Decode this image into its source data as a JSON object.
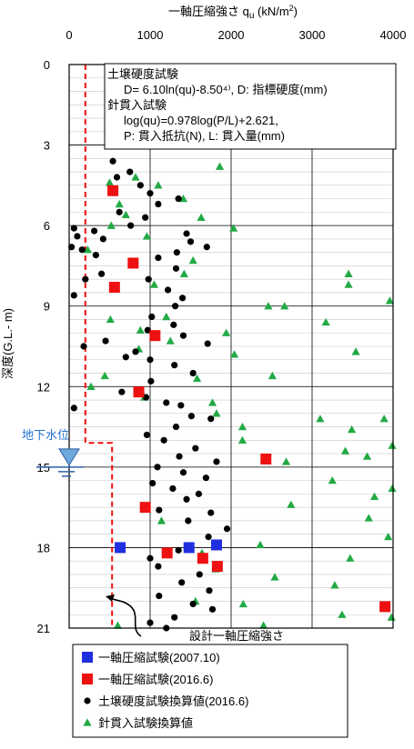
{
  "chart_data": {
    "type": "scatter",
    "title": "一軸圧縮強さ qᵤ (kN/m²)",
    "xaxis": {
      "title": "一軸圧縮強さ qu (kN/m2)",
      "range": [
        0,
        4000
      ],
      "ticks": [
        "0",
        "1000",
        "2000",
        "3000",
        "4000"
      ],
      "position": "top"
    },
    "yaxis": {
      "title": "深度(G.L.- m)",
      "range": [
        0,
        21
      ],
      "inverted": true,
      "ticks": [
        "0",
        "3",
        "6",
        "9",
        "12",
        "15",
        "18",
        "21"
      ]
    },
    "grid": true,
    "annotation_box": {
      "lines": [
        "土壌硬度試験",
        "D= 6.10ln(qu)-8.50⁴⁾, D: 指標硬度(mm)",
        "針貫入試験",
        "log(qu)=0.978log(P/L)+2.621,",
        "P: 貫入抵抗(N), L: 貫入量(mm)"
      ]
    },
    "groundwater_label": "地下水位",
    "groundwater_depth": 15.0,
    "design_curve_label": "設計一軸圧縮強さ",
    "design_curve": [
      {
        "x": 200,
        "y": 0
      },
      {
        "x": 200,
        "y": 14.1
      },
      {
        "x": 530,
        "y": 14.1
      },
      {
        "x": 530,
        "y": 21
      }
    ],
    "legend": {
      "placement": "bottom",
      "items": [
        {
          "label": "一軸圧縮試験(2007.10)",
          "marker": "square",
          "color": "#1f2fe0"
        },
        {
          "label": "一軸圧縮試験(2016.6)",
          "marker": "square",
          "color": "#ee1111"
        },
        {
          "label": "土壌硬度試験換算値(2016.6)",
          "marker": "circle",
          "color": "#000000"
        },
        {
          "label": "針貫入試験換算値",
          "marker": "triangle",
          "color": "#22aa44"
        }
      ]
    },
    "series": [
      {
        "name": "一軸圧縮試験(2007.10)",
        "marker": "square",
        "color": "#1f2fe0",
        "points": [
          [
            1480,
            18.0
          ],
          [
            1820,
            17.9
          ],
          [
            630,
            18.0
          ]
        ]
      },
      {
        "name": "一軸圧縮試験(2016.6)",
        "marker": "square",
        "color": "#ee1111",
        "points": [
          [
            540,
            4.7
          ],
          [
            790,
            7.4
          ],
          [
            560,
            8.3
          ],
          [
            1060,
            10.1
          ],
          [
            860,
            12.2
          ],
          [
            2430,
            14.7
          ],
          [
            940,
            16.5
          ],
          [
            1210,
            18.2
          ],
          [
            1650,
            18.4
          ],
          [
            1830,
            18.7
          ],
          [
            3900,
            20.2
          ]
        ]
      },
      {
        "name": "土壌硬度試験換算値(2016.6)",
        "marker": "circle",
        "color": "#000000",
        "points": [
          [
            540,
            3.6
          ],
          [
            750,
            4.0
          ],
          [
            590,
            4.2
          ],
          [
            880,
            4.5
          ],
          [
            1000,
            4.8
          ],
          [
            1350,
            5.0
          ],
          [
            1100,
            5.2
          ],
          [
            620,
            5.5
          ],
          [
            940,
            5.7
          ],
          [
            760,
            6.0
          ],
          [
            310,
            6.2
          ],
          [
            1450,
            6.3
          ],
          [
            1500,
            6.6
          ],
          [
            1700,
            6.8
          ],
          [
            1330,
            7.0
          ],
          [
            1100,
            7.2
          ],
          [
            1320,
            7.6
          ],
          [
            400,
            7.8
          ],
          [
            980,
            8.0
          ],
          [
            420,
            6.5
          ],
          [
            160,
            6.9
          ],
          [
            1220,
            8.4
          ],
          [
            1400,
            8.7
          ],
          [
            1310,
            9.0
          ],
          [
            1020,
            9.4
          ],
          [
            1290,
            9.7
          ],
          [
            970,
            9.9
          ],
          [
            1410,
            10.1
          ],
          [
            1710,
            10.4
          ],
          [
            180,
            10.5
          ],
          [
            820,
            10.7
          ],
          [
            1000,
            11.0
          ],
          [
            1300,
            11.2
          ],
          [
            1530,
            11.5
          ],
          [
            1010,
            11.8
          ],
          [
            650,
            12.2
          ],
          [
            950,
            12.4
          ],
          [
            1200,
            12.6
          ],
          [
            1380,
            12.7
          ],
          [
            60,
            12.8
          ],
          [
            1510,
            13.1
          ],
          [
            1750,
            13.2
          ],
          [
            1320,
            13.5
          ],
          [
            960,
            13.8
          ],
          [
            1170,
            14.0
          ],
          [
            1560,
            14.3
          ],
          [
            1360,
            14.6
          ],
          [
            1820,
            14.8
          ],
          [
            1090,
            15.0
          ],
          [
            1410,
            15.2
          ],
          [
            1690,
            15.4
          ],
          [
            1030,
            15.6
          ],
          [
            1280,
            15.8
          ],
          [
            1600,
            16.0
          ],
          [
            1450,
            16.2
          ],
          [
            1110,
            16.6
          ],
          [
            1750,
            16.7
          ],
          [
            1470,
            17.0
          ],
          [
            1950,
            17.3
          ],
          [
            1720,
            17.6
          ],
          [
            1350,
            18.1
          ],
          [
            1000,
            18.4
          ],
          [
            1100,
            18.7
          ],
          [
            1610,
            19.0
          ],
          [
            1390,
            19.3
          ],
          [
            1730,
            19.6
          ],
          [
            1110,
            19.8
          ],
          [
            1530,
            20.1
          ],
          [
            1770,
            20.3
          ],
          [
            1300,
            20.6
          ],
          [
            1000,
            20.8
          ],
          [
            1200,
            21.0
          ],
          [
            60,
            6.1
          ],
          [
            100,
            6.4
          ],
          [
            30,
            6.8
          ],
          [
            330,
            7.1
          ],
          [
            200,
            8.0
          ],
          [
            60,
            8.6
          ],
          [
            450,
            10.3
          ],
          [
            700,
            10.9
          ]
        ]
      },
      {
        "name": "針貫入試験換算値",
        "marker": "triangle",
        "color": "#22aa44",
        "points": [
          [
            1860,
            3.8
          ],
          [
            820,
            4.2
          ],
          [
            500,
            4.4
          ],
          [
            1100,
            4.5
          ],
          [
            620,
            5.2
          ],
          [
            1410,
            5.0
          ],
          [
            700,
            5.6
          ],
          [
            1630,
            5.7
          ],
          [
            520,
            6.0
          ],
          [
            2030,
            6.1
          ],
          [
            960,
            6.4
          ],
          [
            230,
            6.9
          ],
          [
            1530,
            7.3
          ],
          [
            3450,
            7.8
          ],
          [
            1050,
            8.2
          ],
          [
            3450,
            8.2
          ],
          [
            1420,
            7.8
          ],
          [
            2460,
            9.0
          ],
          [
            3960,
            8.8
          ],
          [
            2660,
            9.0
          ],
          [
            1200,
            9.4
          ],
          [
            510,
            9.5
          ],
          [
            880,
            9.9
          ],
          [
            1940,
            10.0
          ],
          [
            3170,
            9.6
          ],
          [
            1250,
            10.3
          ],
          [
            860,
            10.6
          ],
          [
            2040,
            10.8
          ],
          [
            3540,
            10.7
          ],
          [
            440,
            11.6
          ],
          [
            1580,
            11.7
          ],
          [
            2510,
            11.6
          ],
          [
            270,
            12.0
          ],
          [
            930,
            12.4
          ],
          [
            1770,
            12.6
          ],
          [
            2140,
            13.5
          ],
          [
            1820,
            13.0
          ],
          [
            3100,
            13.2
          ],
          [
            3490,
            13.6
          ],
          [
            3890,
            13.2
          ],
          [
            2140,
            14.0
          ],
          [
            3410,
            14.4
          ],
          [
            3680,
            14.6
          ],
          [
            3990,
            14.2
          ],
          [
            2680,
            14.8
          ],
          [
            3250,
            15.5
          ],
          [
            3990,
            15.8
          ],
          [
            3770,
            16.1
          ],
          [
            2740,
            16.4
          ],
          [
            1140,
            17.0
          ],
          [
            3700,
            16.9
          ],
          [
            2360,
            17.9
          ],
          [
            3940,
            17.6
          ],
          [
            1640,
            18.2
          ],
          [
            3470,
            18.4
          ],
          [
            1810,
            18.8
          ],
          [
            2540,
            19.1
          ],
          [
            3280,
            19.4
          ],
          [
            1560,
            20.0
          ],
          [
            2150,
            20.1
          ],
          [
            3370,
            20.5
          ],
          [
            3980,
            20.6
          ],
          [
            2400,
            20.9
          ],
          [
            600,
            20.9
          ]
        ]
      }
    ]
  }
}
